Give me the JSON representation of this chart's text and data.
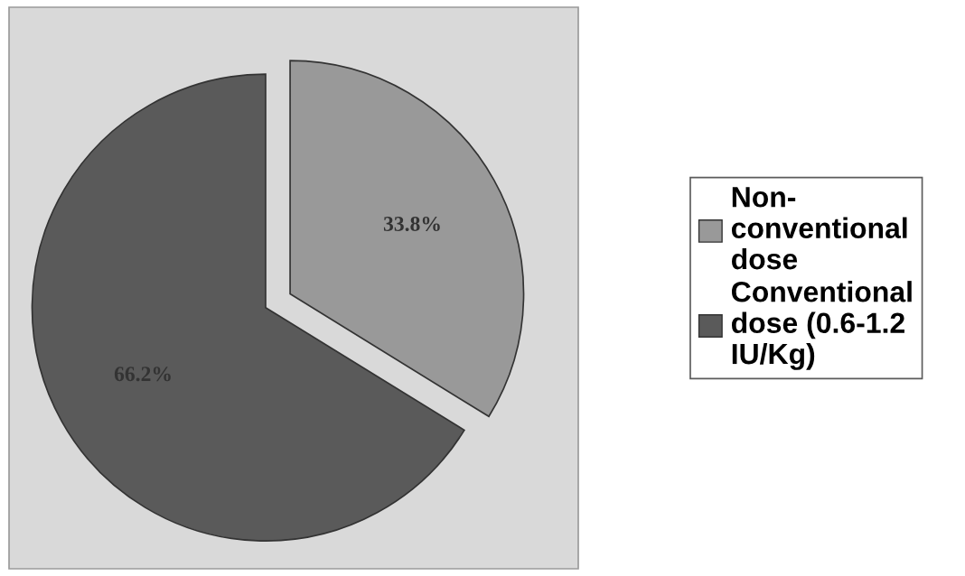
{
  "chart_data": {
    "type": "pie",
    "categories": [
      "Non-\nconventional\ndose",
      "Conventional\ndose (0.6-1.2\nIU/Kg)"
    ],
    "values": [
      33.8,
      66.2
    ],
    "colors": [
      "#999999",
      "#5a5a5a"
    ],
    "value_labels": [
      "33.8%",
      "66.2%"
    ],
    "legend": "right"
  }
}
